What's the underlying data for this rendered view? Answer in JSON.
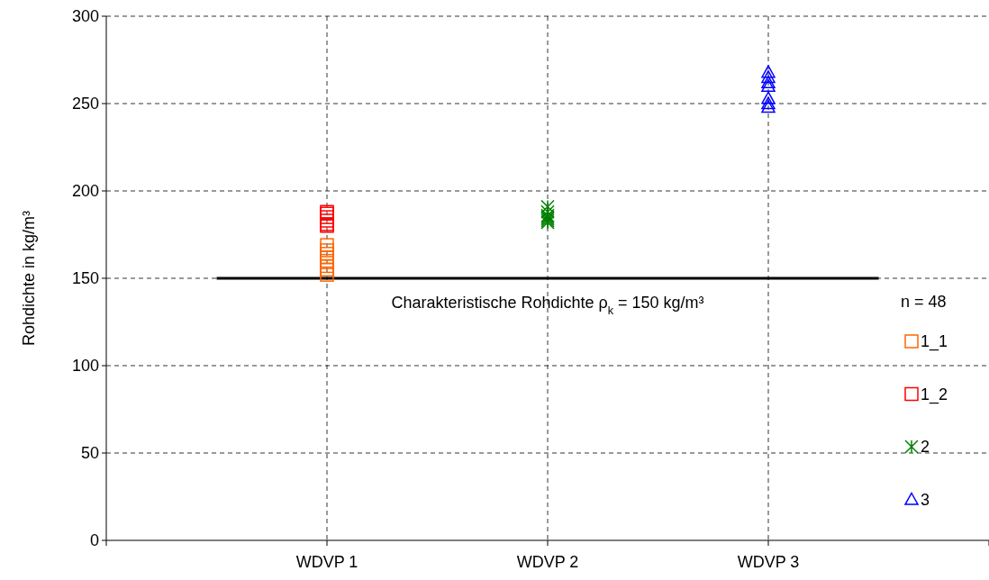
{
  "chart_data": {
    "type": "scatter",
    "ylabel": "Rohdichte in kg/m³",
    "categories": [
      "WDVP 1",
      "WDVP 2",
      "WDVP 3"
    ],
    "ylim": [
      0,
      300
    ],
    "yticks": [
      0,
      50,
      100,
      150,
      200,
      250,
      300
    ],
    "grid": true,
    "legend": "right",
    "legend_title": "n = 48",
    "series": [
      {
        "name": "1_1",
        "color": "#ff6600",
        "marker": "square",
        "x": [
          "WDVP 1",
          "WDVP 1",
          "WDVP 1",
          "WDVP 1",
          "WDVP 1",
          "WDVP 1",
          "WDVP 1",
          "WDVP 1"
        ],
        "values": [
          169,
          166,
          164,
          162,
          160,
          157,
          155,
          152
        ]
      },
      {
        "name": "1_2",
        "color": "#ff0000",
        "marker": "square",
        "x": [
          "WDVP 1",
          "WDVP 1",
          "WDVP 1",
          "WDVP 1",
          "WDVP 1",
          "WDVP 1"
        ],
        "values": [
          188,
          187,
          185,
          183,
          181,
          180
        ]
      },
      {
        "name": "2",
        "color": "#008000",
        "marker": "cross",
        "x": [
          "WDVP 2",
          "WDVP 2",
          "WDVP 2",
          "WDVP 2",
          "WDVP 2",
          "WDVP 2",
          "WDVP 2"
        ],
        "values": [
          191,
          188,
          186,
          185,
          184,
          183,
          182
        ]
      },
      {
        "name": "3",
        "color": "#0000ff",
        "marker": "triangle",
        "x": [
          "WDVP 3",
          "WDVP 3",
          "WDVP 3",
          "WDVP 3",
          "WDVP 3",
          "WDVP 3",
          "WDVP 3"
        ],
        "values": [
          268,
          265,
          262,
          260,
          253,
          250,
          248
        ]
      }
    ],
    "ref_lines": [
      {
        "axis": "y",
        "value": 150,
        "label": "Charakteristische Rohdichte ρ$_{k}$ = 150 kg/m³",
        "color": "#000000"
      }
    ]
  }
}
